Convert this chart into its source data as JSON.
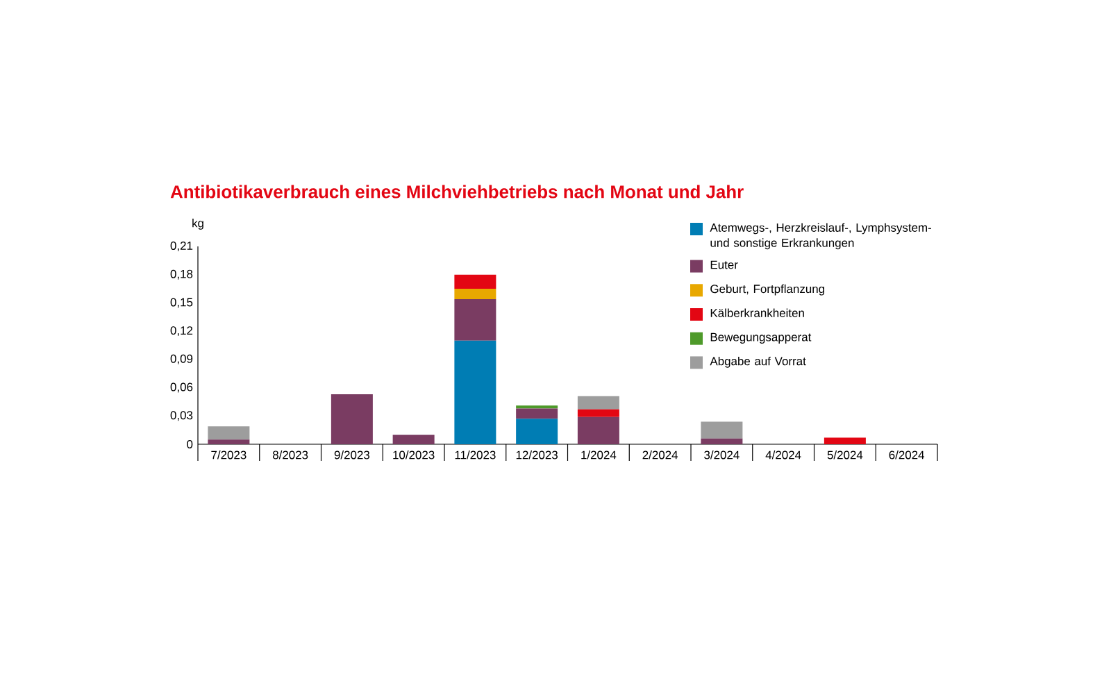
{
  "chart_data": {
    "type": "bar",
    "stacked": true,
    "title": "Antibiotikaverbrauch eines Milchviehbetriebs nach Monat und Jahr",
    "ylabel": "kg",
    "categories": [
      "7/2023",
      "8/2023",
      "9/2023",
      "10/2023",
      "11/2023",
      "12/2023",
      "1/2024",
      "2/2024",
      "3/2024",
      "4/2024",
      "5/2024",
      "6/2024"
    ],
    "series": [
      {
        "name": "Atemwegs-, Herzkreislauf-, Lymphsystem- und sonstige Erkrankungen",
        "color": "#007db4",
        "values": [
          0,
          0,
          0,
          0,
          0.11,
          0.027,
          0,
          0,
          0,
          0,
          0,
          0
        ]
      },
      {
        "name": "Euter",
        "color": "#7a3c62",
        "values": [
          0.005,
          0,
          0.053,
          0.01,
          0.044,
          0.011,
          0.029,
          0,
          0.006,
          0,
          0,
          0
        ]
      },
      {
        "name": "Geburt, Fortpflanzung",
        "color": "#e8a800",
        "values": [
          0,
          0,
          0,
          0,
          0.011,
          0,
          0,
          0,
          0,
          0,
          0,
          0
        ]
      },
      {
        "name": "Kälberkrankheiten",
        "color": "#e30613",
        "values": [
          0,
          0,
          0,
          0,
          0.015,
          0,
          0.008,
          0,
          0,
          0,
          0.007,
          0
        ]
      },
      {
        "name": "Bewegungsapperat",
        "color": "#4e9a2a",
        "values": [
          0,
          0,
          0,
          0,
          0,
          0.003,
          0,
          0,
          0,
          0,
          0,
          0
        ]
      },
      {
        "name": "Abgabe auf Vorrat",
        "color": "#9d9d9d",
        "values": [
          0.014,
          0,
          0,
          0,
          0,
          0,
          0.014,
          0,
          0.018,
          0,
          0,
          0
        ]
      }
    ],
    "ylim": [
      0,
      0.21
    ],
    "yticks": [
      0,
      {
        "value": 0.03,
        "label": "0,03"
      },
      {
        "value": 0.06,
        "label": "0,06"
      },
      {
        "value": 0.09,
        "label": "0,09"
      },
      {
        "value": 0.12,
        "label": "0,12"
      },
      {
        "value": 0.15,
        "label": "0,15"
      },
      {
        "value": 0.18,
        "label": "0,18"
      },
      {
        "value": 0.21,
        "label": "0,21"
      }
    ],
    "legend": "top right",
    "grid": false
  }
}
